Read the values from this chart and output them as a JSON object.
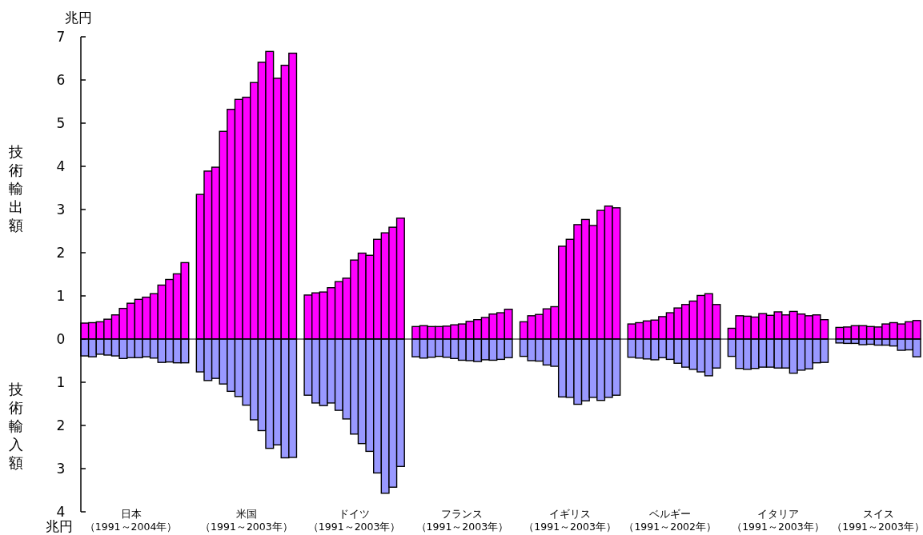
{
  "chart_data": {
    "type": "bar",
    "stacked": true,
    "ylabel": "技術輸出額",
    "annotations": [
      "兆円",
      "技術輸入額",
      "兆円"
    ],
    "categories": [
      null,
      null,
      null,
      null,
      null,
      null,
      "日本（1991～2004年）",
      null,
      null,
      null,
      null,
      null,
      null,
      null,
      null,
      null,
      null,
      null,
      null,
      null,
      null,
      "米国（1991～2003年）",
      null,
      null,
      null,
      null,
      null,
      null,
      null,
      null,
      null,
      null,
      null,
      null,
      null,
      "ドイツ（1991～2003年）",
      null,
      null,
      null,
      null,
      null,
      null,
      null,
      null,
      null,
      null,
      null,
      null,
      null,
      "フランス（1991～2003年）",
      null,
      null,
      null,
      null,
      null,
      null,
      null,
      null,
      null,
      null,
      null,
      null,
      null,
      "イギリス（1991～2003年）",
      null,
      null,
      null,
      null,
      null,
      null,
      null,
      null,
      null,
      null,
      null,
      null,
      "ベルギー（1991～2002年）",
      null,
      null,
      null,
      null,
      null,
      null,
      null,
      null,
      null,
      null,
      null,
      null,
      null,
      "イタリア（1991～2003年）",
      null,
      null,
      null,
      null,
      null,
      null,
      null,
      null,
      null,
      null,
      null,
      null,
      "スイス（1991～2003年）",
      null,
      null,
      null,
      null,
      null
    ],
    "series": [
      {
        "color": "#ff00ff",
        "values": [
          0.37,
          0.38,
          0.4,
          0.46,
          0.56,
          0.71,
          0.83,
          0.92,
          0.97,
          1.05,
          1.25,
          1.38,
          1.51,
          1.77,
          null,
          3.35,
          3.89,
          3.98,
          4.81,
          5.32,
          5.55,
          5.6,
          5.94,
          6.41,
          6.66,
          6.04,
          6.34,
          6.62,
          null,
          1.02,
          1.07,
          1.09,
          1.19,
          1.33,
          1.41,
          1.83,
          1.99,
          1.94,
          2.31,
          2.46,
          2.59,
          2.8,
          null,
          0.29,
          0.31,
          0.29,
          0.29,
          0.3,
          0.33,
          0.35,
          0.41,
          0.45,
          0.5,
          0.58,
          0.61,
          0.69,
          null,
          0.4,
          0.54,
          0.57,
          0.7,
          0.75,
          2.15,
          2.31,
          2.65,
          2.77,
          2.63,
          2.98,
          3.08,
          3.04,
          null,
          0.35,
          0.38,
          0.42,
          0.44,
          0.52,
          0.61,
          0.72,
          0.8,
          0.88,
          1.01,
          1.05,
          0.8,
          null,
          0.25,
          0.54,
          0.53,
          0.51,
          0.59,
          0.55,
          0.63,
          0.56,
          0.64,
          0.58,
          0.54,
          0.56,
          0.45,
          null,
          0.27,
          0.28,
          0.31,
          0.31,
          0.29,
          0.28,
          0.35,
          0.38,
          0.35,
          0.4,
          0.43
        ]
      },
      {
        "color": "#9999ff",
        "values": [
          -0.39,
          -0.41,
          -0.35,
          -0.37,
          -0.39,
          -0.45,
          -0.43,
          -0.43,
          -0.41,
          -0.44,
          -0.54,
          -0.53,
          -0.55,
          -0.55,
          null,
          -0.76,
          -0.96,
          -0.91,
          -1.04,
          -1.21,
          -1.33,
          -1.53,
          -1.87,
          -2.12,
          -2.53,
          -2.45,
          -2.75,
          -2.74,
          null,
          -1.3,
          -1.48,
          -1.54,
          -1.48,
          -1.65,
          -1.85,
          -2.2,
          -2.42,
          -2.6,
          -3.1,
          -3.57,
          -3.43,
          -2.95,
          null,
          -0.41,
          -0.44,
          -0.42,
          -0.4,
          -0.42,
          -0.45,
          -0.49,
          -0.5,
          -0.52,
          -0.48,
          -0.49,
          -0.47,
          -0.43,
          null,
          -0.4,
          -0.5,
          -0.51,
          -0.6,
          -0.63,
          -1.34,
          -1.35,
          -1.51,
          -1.43,
          -1.35,
          -1.42,
          -1.35,
          -1.3,
          null,
          -0.42,
          -0.44,
          -0.46,
          -0.48,
          -0.43,
          -0.47,
          -0.56,
          -0.65,
          -0.7,
          -0.76,
          -0.85,
          -0.67,
          null,
          -0.4,
          -0.68,
          -0.7,
          -0.68,
          -0.65,
          -0.65,
          -0.67,
          -0.67,
          -0.79,
          -0.72,
          -0.69,
          -0.55,
          -0.54,
          null,
          -0.09,
          -0.1,
          -0.1,
          -0.13,
          -0.12,
          -0.14,
          -0.14,
          -0.16,
          -0.26,
          -0.25,
          -0.41
        ]
      }
    ],
    "ylim": [
      -4,
      7
    ],
    "yticks": [
      {
        "value": -4,
        "label": "4"
      },
      {
        "value": -3,
        "label": "3"
      },
      {
        "value": -2,
        "label": "2"
      },
      {
        "value": -1,
        "label": "1"
      },
      0,
      1,
      2,
      3,
      4,
      5,
      6,
      7
    ],
    "ref_lines": [
      {
        "axis": "y",
        "value": 0,
        "color": "#000000"
      }
    ]
  }
}
